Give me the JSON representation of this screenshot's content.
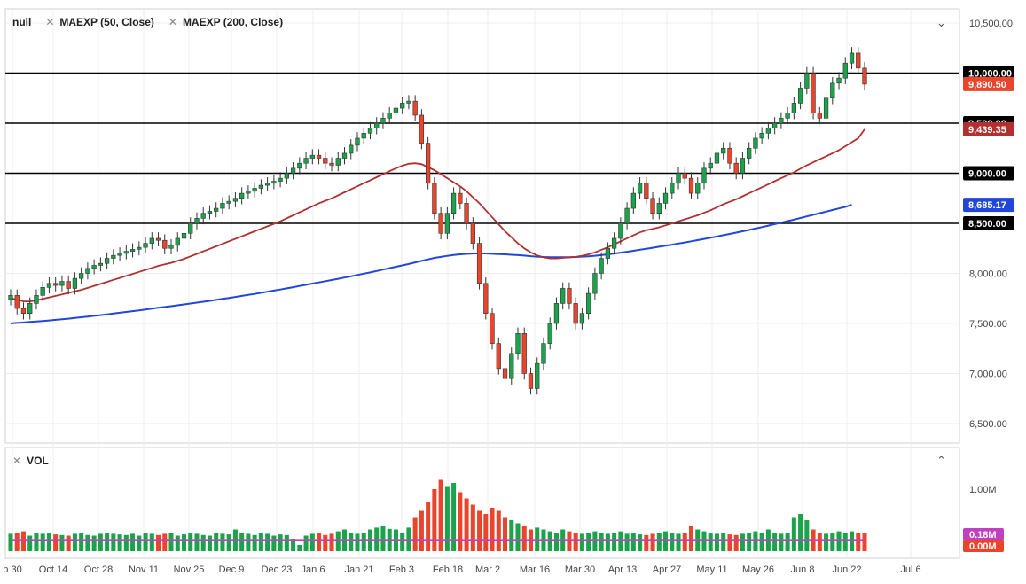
{
  "legend": {
    "main": "null",
    "ma50": "MAEXP (50, Close)",
    "ma200": "MAEXP (200, Close)",
    "vol": "VOL"
  },
  "icons": {
    "close": "close-icon",
    "collapse": "chevron-down-icon",
    "expand": "chevron-up-icon",
    "settings": "gear-icon"
  },
  "colors": {
    "up": "#1aa34a",
    "down": "#e8452c",
    "ma50": "#b23030",
    "ma200": "#2147d8",
    "volAvg": "#c040c0"
  },
  "chart_data": [
    {
      "type": "candlestick",
      "title": "",
      "y_ticks": [
        "6,500.00",
        "7,000.00",
        "7,500.00",
        "8,000.00",
        "8,500.00",
        "9,000.00",
        "9,500.00",
        "10,000.00",
        "10,500.00"
      ],
      "ylim": [
        6400,
        10600
      ],
      "x_ticks": [
        "p 30",
        "Oct 14",
        "Oct 28",
        "Nov 11",
        "Nov 25",
        "Dec 9",
        "Dec 23",
        "Jan 6",
        "Jan 21",
        "Feb 3",
        "Feb 18",
        "Mar 2",
        "Mar 16",
        "Mar 30",
        "Apr 13",
        "Apr 27",
        "May 11",
        "May 26",
        "Jun 8",
        "Jun 22",
        "Jul 6"
      ],
      "horizontal_levels": [
        10000,
        9500,
        9000,
        8500
      ],
      "price_tags": [
        {
          "label": "10,000.00",
          "value": 10000,
          "color": "#000000"
        },
        {
          "label": "9,890.50",
          "value": 9890.5,
          "color": "#e8452c"
        },
        {
          "label": "9,500.00",
          "value": 9500,
          "color": "#000000"
        },
        {
          "label": "9,439.35",
          "value": 9439.35,
          "color": "#b23030"
        },
        {
          "label": "9,000.00",
          "value": 9000,
          "color": "#000000"
        },
        {
          "label": "8,685.17",
          "value": 8685.17,
          "color": "#2147d8"
        },
        {
          "label": "8,500.00",
          "value": 8500,
          "color": "#000000"
        }
      ],
      "close_series": [
        7780,
        7650,
        7600,
        7700,
        7780,
        7860,
        7900,
        7880,
        7920,
        7850,
        7950,
        8000,
        8050,
        8080,
        8100,
        8150,
        8180,
        8200,
        8220,
        8240,
        8260,
        8300,
        8350,
        8330,
        8250,
        8280,
        8350,
        8400,
        8500,
        8550,
        8600,
        8620,
        8650,
        8700,
        8720,
        8750,
        8800,
        8820,
        8850,
        8880,
        8900,
        8920,
        8950,
        9000,
        9050,
        9100,
        9150,
        9180,
        9150,
        9100,
        9080,
        9150,
        9200,
        9280,
        9350,
        9400,
        9450,
        9500,
        9550,
        9600,
        9650,
        9700,
        9720,
        9580,
        9300,
        8900,
        8600,
        8400,
        8600,
        8800,
        8700,
        8500,
        8300,
        7900,
        7600,
        7300,
        7050,
        6950,
        7200,
        7400,
        7000,
        6850,
        7100,
        7300,
        7500,
        7700,
        7850,
        7700,
        7500,
        7600,
        7800,
        8000,
        8150,
        8250,
        8350,
        8500,
        8650,
        8800,
        8900,
        8750,
        8600,
        8700,
        8800,
        8900,
        9000,
        8950,
        8800,
        8900,
        9050,
        9100,
        9200,
        9250,
        9100,
        9000,
        9150,
        9250,
        9350,
        9400,
        9450,
        9500,
        9550,
        9600,
        9700,
        9850,
        10000,
        9600,
        9550,
        9750,
        9900,
        9950,
        10100,
        10200,
        10050,
        9890
      ],
      "ma50": [
        7750,
        7740,
        7720,
        7720,
        7730,
        7745,
        7760,
        7775,
        7790,
        7805,
        7820,
        7835,
        7855,
        7875,
        7895,
        7915,
        7935,
        7955,
        7975,
        7995,
        8015,
        8035,
        8055,
        8075,
        8090,
        8105,
        8125,
        8145,
        8170,
        8195,
        8220,
        8245,
        8270,
        8295,
        8320,
        8345,
        8370,
        8395,
        8420,
        8445,
        8470,
        8495,
        8520,
        8550,
        8580,
        8610,
        8640,
        8670,
        8700,
        8725,
        8750,
        8780,
        8810,
        8840,
        8870,
        8900,
        8930,
        8960,
        8990,
        9020,
        9050,
        9075,
        9095,
        9100,
        9090,
        9060,
        9030,
        8990,
        8950,
        8910,
        8870,
        8820,
        8760,
        8700,
        8630,
        8560,
        8490,
        8420,
        8360,
        8300,
        8250,
        8210,
        8180,
        8160,
        8150,
        8150,
        8155,
        8160,
        8165,
        8175,
        8190,
        8210,
        8235,
        8260,
        8290,
        8320,
        8350,
        8380,
        8410,
        8430,
        8445,
        8460,
        8480,
        8500,
        8520,
        8540,
        8560,
        8580,
        8605,
        8630,
        8660,
        8690,
        8715,
        8740,
        8770,
        8800,
        8830,
        8860,
        8890,
        8920,
        8950,
        8980,
        9010,
        9045,
        9080,
        9110,
        9140,
        9170,
        9200,
        9230,
        9270,
        9310,
        9350,
        9439
      ],
      "ma200": [
        7500,
        7505,
        7510,
        7515,
        7520,
        7525,
        7530,
        7536,
        7542,
        7548,
        7555,
        7562,
        7569,
        7576,
        7583,
        7591,
        7599,
        7607,
        7615,
        7623,
        7631,
        7639,
        7648,
        7657,
        7665,
        7673,
        7681,
        7690,
        7699,
        7708,
        7717,
        7726,
        7735,
        7745,
        7755,
        7765,
        7775,
        7785,
        7795,
        7806,
        7817,
        7828,
        7839,
        7850,
        7862,
        7874,
        7886,
        7898,
        7910,
        7922,
        7934,
        7946,
        7958,
        7971,
        7984,
        7997,
        8010,
        8024,
        8038,
        8052,
        8066,
        8080,
        8094,
        8110,
        8125,
        8140,
        8155,
        8165,
        8175,
        8183,
        8190,
        8195,
        8198,
        8200,
        8199,
        8196,
        8193,
        8190,
        8186,
        8182,
        8178,
        8172,
        8167,
        8164,
        8162,
        8161,
        8161,
        8162,
        8164,
        8167,
        8171,
        8176,
        8182,
        8190,
        8198,
        8207,
        8216,
        8226,
        8236,
        8246,
        8256,
        8266,
        8276,
        8287,
        8298,
        8309,
        8320,
        8332,
        8344,
        8356,
        8368,
        8381,
        8394,
        8407,
        8420,
        8434,
        8448,
        8462,
        8477,
        8492,
        8507,
        8522,
        8537,
        8553,
        8569,
        8585,
        8601,
        8617,
        8633,
        8649,
        8665,
        8685
      ]
    },
    {
      "type": "bar",
      "title": "",
      "y_ticks": [
        "1.00M"
      ],
      "ylim": [
        0,
        1.4
      ],
      "value_tags": [
        {
          "label": "0.18M",
          "color": "#c040c0"
        },
        {
          "label": "0.00M",
          "color": "#e8452c"
        }
      ],
      "volume_m": [
        0.28,
        0.3,
        0.32,
        0.25,
        0.3,
        0.28,
        0.3,
        0.27,
        0.26,
        0.25,
        0.28,
        0.3,
        0.26,
        0.25,
        0.28,
        0.3,
        0.28,
        0.27,
        0.26,
        0.28,
        0.25,
        0.3,
        0.28,
        0.26,
        0.28,
        0.3,
        0.25,
        0.27,
        0.3,
        0.28,
        0.26,
        0.25,
        0.3,
        0.28,
        0.27,
        0.35,
        0.3,
        0.28,
        0.26,
        0.3,
        0.28,
        0.25,
        0.27,
        0.26,
        0.2,
        0.1,
        0.25,
        0.28,
        0.3,
        0.26,
        0.28,
        0.32,
        0.35,
        0.3,
        0.28,
        0.3,
        0.35,
        0.38,
        0.4,
        0.36,
        0.35,
        0.3,
        0.38,
        0.55,
        0.65,
        0.8,
        1.0,
        1.15,
        1.05,
        1.1,
        0.95,
        0.85,
        0.75,
        0.65,
        0.6,
        0.7,
        0.65,
        0.55,
        0.5,
        0.45,
        0.4,
        0.35,
        0.38,
        0.35,
        0.32,
        0.3,
        0.35,
        0.32,
        0.3,
        0.28,
        0.3,
        0.32,
        0.3,
        0.28,
        0.3,
        0.32,
        0.28,
        0.3,
        0.27,
        0.26,
        0.28,
        0.3,
        0.32,
        0.3,
        0.28,
        0.3,
        0.4,
        0.35,
        0.32,
        0.3,
        0.28,
        0.3,
        0.27,
        0.26,
        0.28,
        0.3,
        0.32,
        0.3,
        0.35,
        0.3,
        0.28,
        0.3,
        0.55,
        0.6,
        0.5,
        0.35,
        0.3,
        0.28,
        0.3,
        0.32,
        0.3,
        0.32,
        0.3,
        0.3
      ],
      "avg_m": 0.18
    }
  ]
}
